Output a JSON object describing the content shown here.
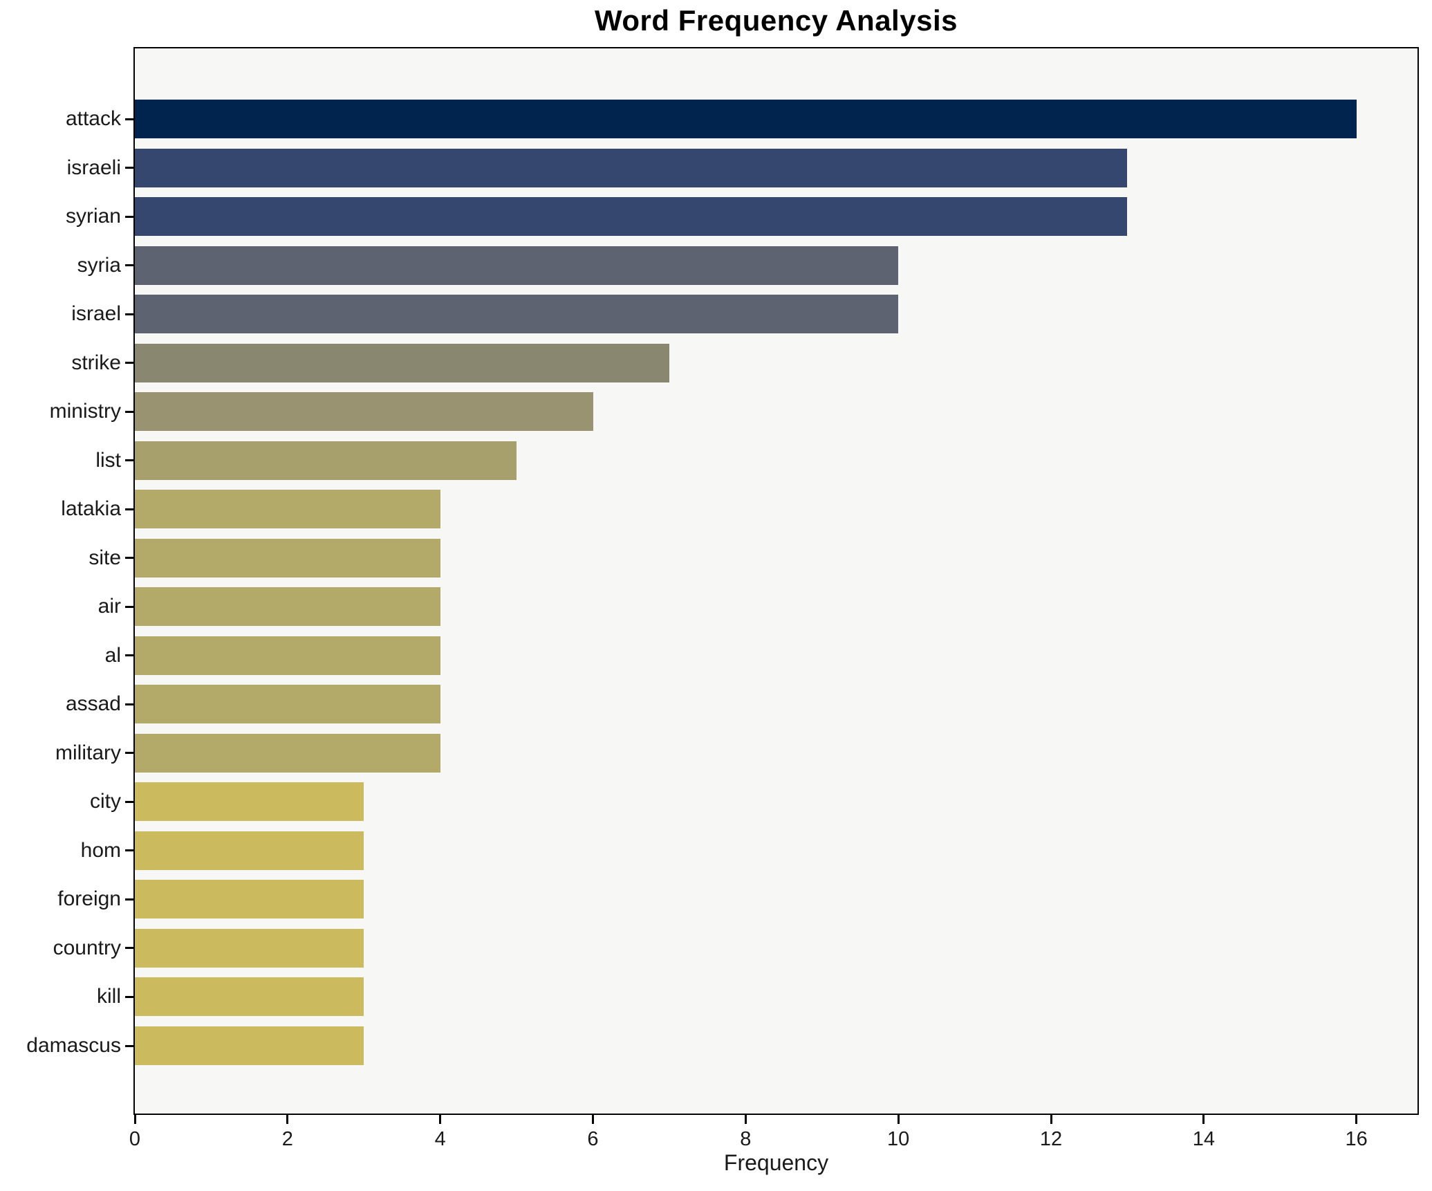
{
  "chart_data": {
    "type": "bar",
    "orientation": "horizontal",
    "title": "Word Frequency Analysis",
    "xlabel": "Frequency",
    "ylabel": "",
    "categories": [
      "attack",
      "israeli",
      "syrian",
      "syria",
      "israel",
      "strike",
      "ministry",
      "list",
      "latakia",
      "site",
      "air",
      "al",
      "assad",
      "military",
      "city",
      "hom",
      "foreign",
      "country",
      "kill",
      "damascus"
    ],
    "values": [
      16,
      13,
      13,
      10,
      10,
      7,
      6,
      5,
      4,
      4,
      4,
      4,
      4,
      4,
      3,
      3,
      3,
      3,
      3,
      3
    ],
    "bar_colors": [
      "#01244e",
      "#35476f",
      "#35476f",
      "#5d6370",
      "#5d6370",
      "#8a8770",
      "#9a9372",
      "#a8a06c",
      "#b3a969",
      "#b3a969",
      "#b3a969",
      "#b3a969",
      "#b3a969",
      "#b3a969",
      "#ccbb5e",
      "#ccbb5e",
      "#ccbb5e",
      "#ccbb5e",
      "#ccbb5e",
      "#ccbb5e"
    ],
    "xticks": [
      0,
      2,
      4,
      6,
      8,
      10,
      12,
      14,
      16
    ],
    "xlim": [
      0,
      16.8
    ],
    "grid": false,
    "legend": "none",
    "plot_background": "#f7f7f6",
    "figure_background": "#ffffff",
    "spine_color": "#000000"
  }
}
